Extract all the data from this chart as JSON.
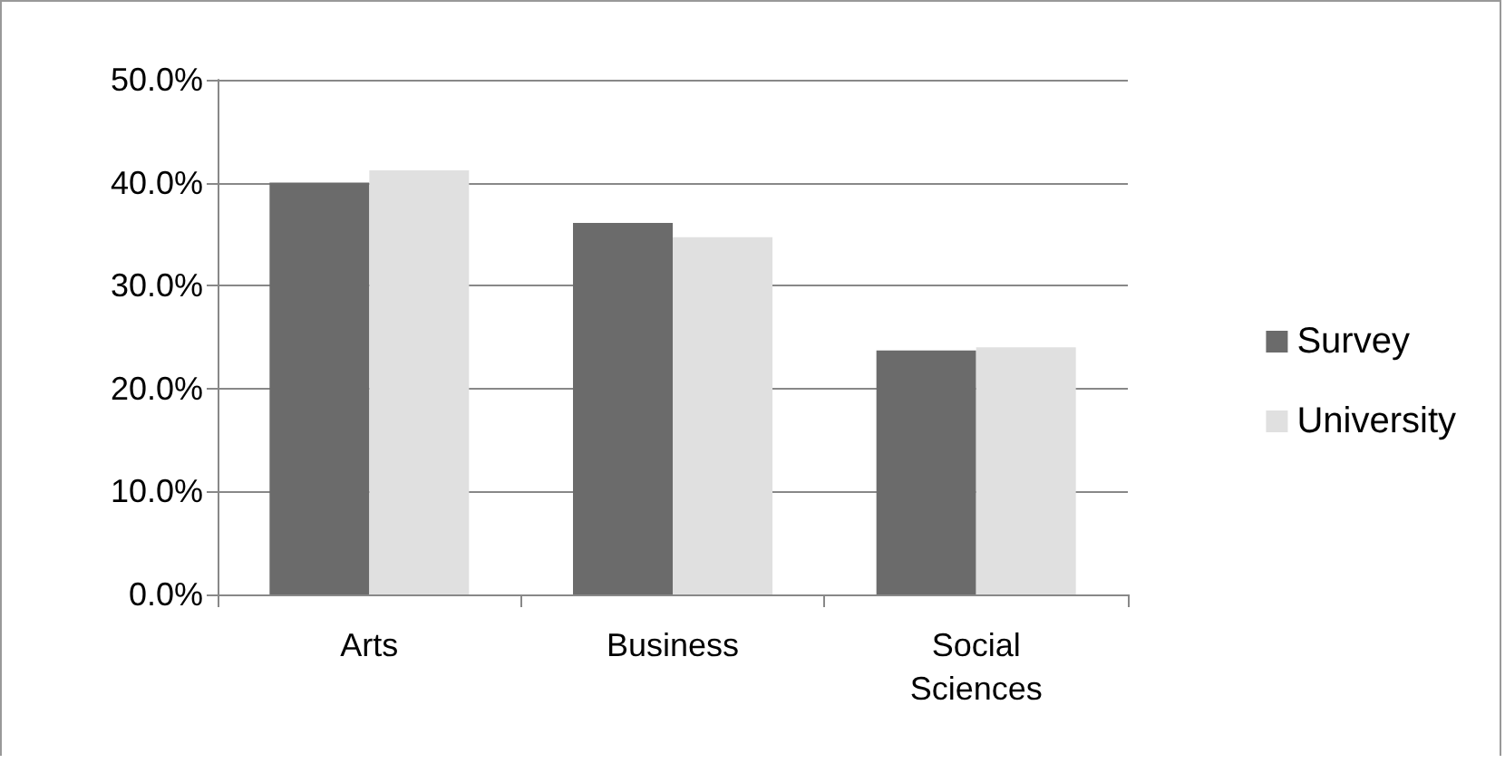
{
  "chart_data": {
    "type": "bar",
    "categories": [
      "Arts",
      "Business",
      "Social\nSciences"
    ],
    "series": [
      {
        "name": "Survey",
        "color": "#6b6b6b",
        "values": [
          40.0,
          36.1,
          23.7
        ]
      },
      {
        "name": "University",
        "color": "#e0e0e0",
        "values": [
          41.2,
          34.7,
          24.0
        ]
      }
    ],
    "ylim": [
      0,
      50
    ],
    "yticks": [
      {
        "value": 0,
        "label": "0.0%"
      },
      {
        "value": 10,
        "label": "10.0%"
      },
      {
        "value": 20,
        "label": "20.0%"
      },
      {
        "value": 30,
        "label": "30.0%"
      },
      {
        "value": 40,
        "label": "40.0%"
      },
      {
        "value": 50,
        "label": "50.0%"
      }
    ],
    "grid": "y",
    "legend": "right"
  }
}
